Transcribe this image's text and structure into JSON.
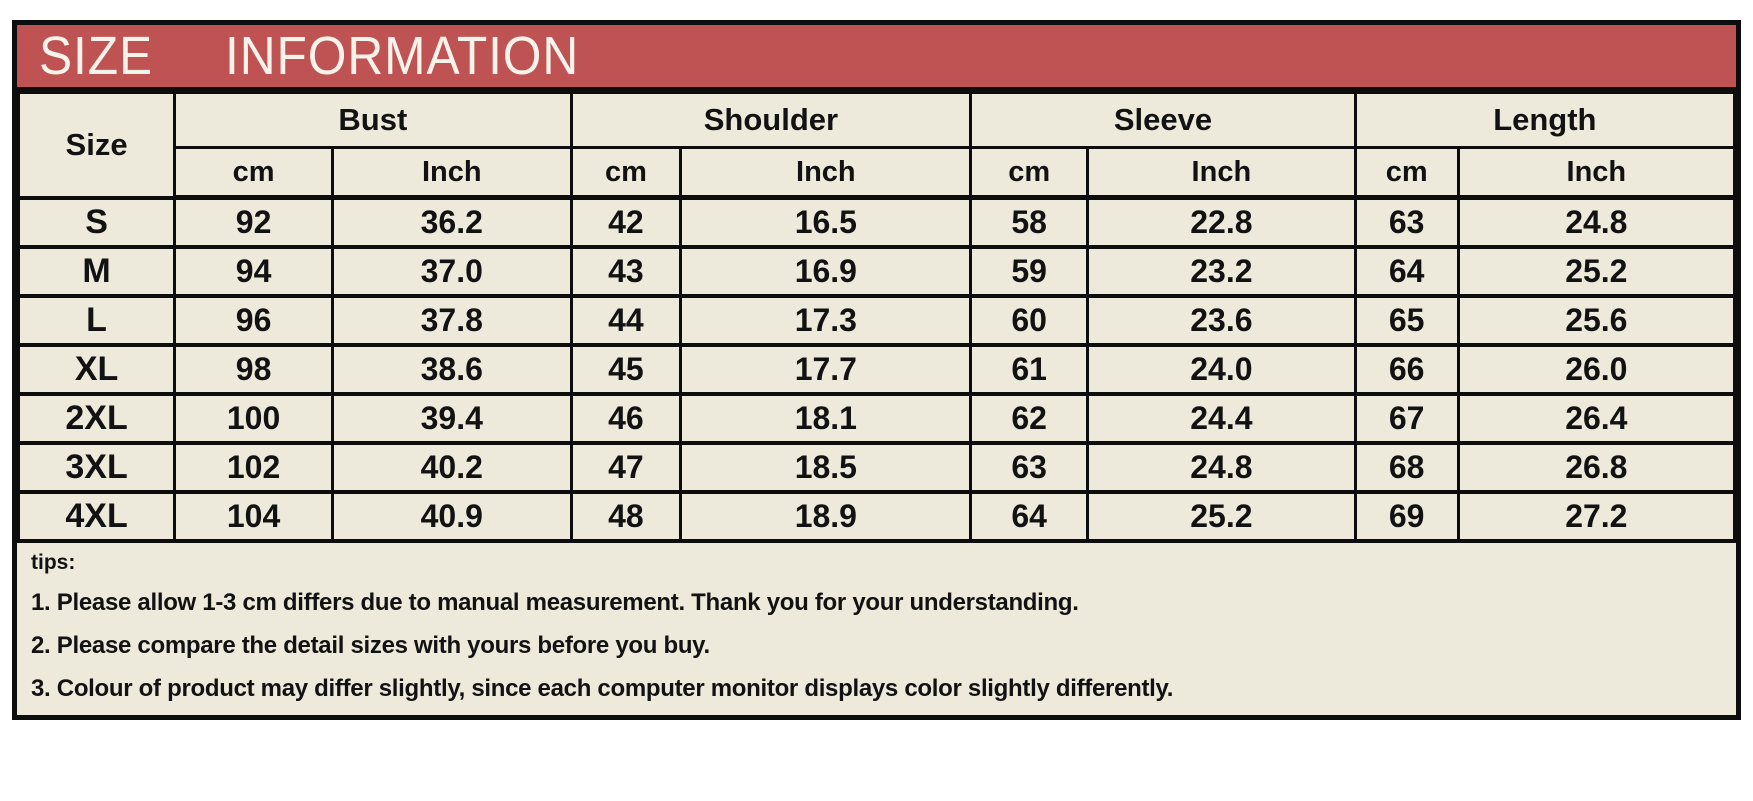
{
  "title": {
    "word1": "SIZE",
    "word2": "INFORMATION"
  },
  "colors": {
    "header_bg": "#bf5353",
    "table_bg": "#edeadb",
    "border": "#0d0d0d",
    "title_text": "#f8f3ea",
    "body_text": "#121212"
  },
  "table": {
    "corner_label": "Size",
    "sections": [
      {
        "label": "Bust"
      },
      {
        "label": "Shoulder"
      },
      {
        "label": "Sleeve"
      },
      {
        "label": "Length"
      }
    ],
    "units": [
      "cm",
      "Inch"
    ],
    "rows": [
      {
        "size": "S",
        "cells": [
          "92",
          "36.2",
          "42",
          "16.5",
          "58",
          "22.8",
          "63",
          "24.8"
        ]
      },
      {
        "size": "M",
        "cells": [
          "94",
          "37.0",
          "43",
          "16.9",
          "59",
          "23.2",
          "64",
          "25.2"
        ]
      },
      {
        "size": "L",
        "cells": [
          "96",
          "37.8",
          "44",
          "17.3",
          "60",
          "23.6",
          "65",
          "25.6"
        ]
      },
      {
        "size": "XL",
        "cells": [
          "98",
          "38.6",
          "45",
          "17.7",
          "61",
          "24.0",
          "66",
          "26.0"
        ]
      },
      {
        "size": "2XL",
        "cells": [
          "100",
          "39.4",
          "46",
          "18.1",
          "62",
          "24.4",
          "67",
          "26.4"
        ]
      },
      {
        "size": "3XL",
        "cells": [
          "102",
          "40.2",
          "47",
          "18.5",
          "63",
          "24.8",
          "68",
          "26.8"
        ]
      },
      {
        "size": "4XL",
        "cells": [
          "104",
          "40.9",
          "48",
          "18.9",
          "64",
          "25.2",
          "69",
          "27.2"
        ]
      }
    ]
  },
  "tips": {
    "heading": "tips:",
    "items": [
      "1. Please allow 1-3 cm differs due to manual measurement. Thank you for your understanding.",
      "2. Please compare the detail sizes with yours before you buy.",
      "3. Colour of product may differ slightly, since each computer monitor displays color slightly differently."
    ]
  },
  "chart_data": {
    "type": "table",
    "title": "SIZE INFORMATION",
    "columns": [
      "Size",
      "Bust cm",
      "Bust Inch",
      "Shoulder cm",
      "Shoulder Inch",
      "Sleeve cm",
      "Sleeve Inch",
      "Length cm",
      "Length Inch"
    ],
    "rows": [
      [
        "S",
        92,
        36.2,
        42,
        16.5,
        58,
        22.8,
        63,
        24.8
      ],
      [
        "M",
        94,
        37.0,
        43,
        16.9,
        59,
        23.2,
        64,
        25.2
      ],
      [
        "L",
        96,
        37.8,
        44,
        17.3,
        60,
        23.6,
        65,
        25.6
      ],
      [
        "XL",
        98,
        38.6,
        45,
        17.7,
        61,
        24.0,
        66,
        26.0
      ],
      [
        "2XL",
        100,
        39.4,
        46,
        18.1,
        62,
        24.4,
        67,
        26.4
      ],
      [
        "3XL",
        102,
        40.2,
        47,
        18.5,
        63,
        24.8,
        68,
        26.8
      ],
      [
        "4XL",
        104,
        40.9,
        48,
        18.9,
        64,
        25.2,
        69,
        27.2
      ]
    ]
  }
}
